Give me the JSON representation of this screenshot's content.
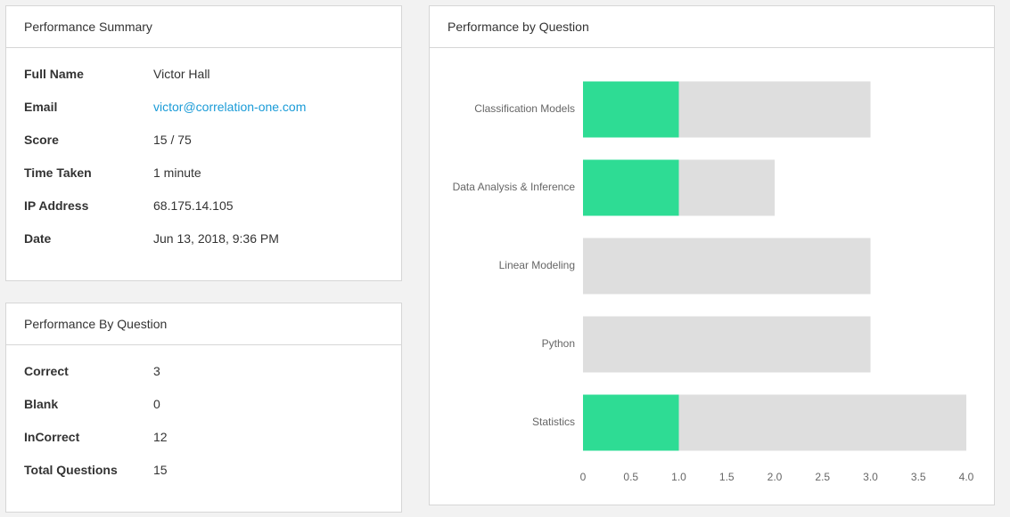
{
  "summary": {
    "title": "Performance Summary",
    "rows": [
      [
        "Full Name",
        "Victor Hall"
      ],
      [
        "Email",
        "victor@correlation-one.com"
      ],
      [
        "Score",
        "15 / 75"
      ],
      [
        "Time Taken",
        "1 minute"
      ],
      [
        "IP Address",
        "68.175.14.105"
      ],
      [
        "Date",
        "Jun 13, 2018, 9:36 PM"
      ]
    ]
  },
  "by_question": {
    "title": "Performance By Question",
    "rows": [
      [
        "Correct",
        3
      ],
      [
        "Blank",
        0
      ],
      [
        "InCorrect",
        12
      ],
      [
        "Total Questions",
        15
      ]
    ]
  },
  "chart_data": {
    "type": "stacked-hbar",
    "title": "Performance by Question",
    "categories": [
      "Classification Models",
      "Data Analysis & Inference",
      "Linear Modeling",
      "Python",
      "Statistics"
    ],
    "series": [
      {
        "color": "#2edc94",
        "values": [
          1,
          1,
          0,
          0,
          1
        ]
      },
      {
        "color": "#dedede",
        "values": [
          2,
          1,
          3,
          3,
          3
        ]
      }
    ],
    "xlim": [
      0,
      4
    ],
    "xticks": [
      0,
      0.5,
      {
        "value": 1,
        "label": "1.0"
      },
      1.5,
      {
        "value": 2,
        "label": "2.0"
      },
      2.5,
      {
        "value": 3,
        "label": "3.0"
      },
      3.5,
      {
        "value": 4,
        "label": "4.0"
      }
    ],
    "grid": false
  }
}
